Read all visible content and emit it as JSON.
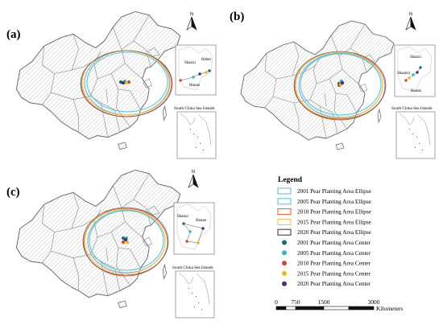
{
  "panels": [
    {
      "label": "(a)",
      "inset_places": [
        "Shanxi",
        "Hebei",
        "Henan"
      ],
      "inset_caption": "South China Sea Islands"
    },
    {
      "label": "(b)",
      "inset_places": [
        "Shanxi",
        "Shaanxi",
        "Henan"
      ],
      "inset_caption": "South China Sea Islands"
    },
    {
      "label": "(c)",
      "inset_places": [
        "Shanxi",
        "Henan"
      ],
      "inset_caption": "South China Sea Islands"
    }
  ],
  "north_label": "N",
  "legend": {
    "title": "Legend",
    "items": [
      {
        "label": "2001 Pear Planting Area Ellipse",
        "kind": "ellipse",
        "color": "#7fb3c2"
      },
      {
        "label": "2005 Pear Planting Area Ellipse",
        "kind": "ellipse",
        "color": "#5ec3d4"
      },
      {
        "label": "2010 Pear Planting Area Ellipse",
        "kind": "ellipse",
        "color": "#e06a3a"
      },
      {
        "label": "2015 Pear Planting Area Ellipse",
        "kind": "ellipse",
        "color": "#e8c060"
      },
      {
        "label": "2020 Pear Planting Area Ellipse",
        "kind": "ellipse",
        "color": "#404040"
      },
      {
        "label": "2001 Pear Planting Area Center",
        "kind": "center",
        "color": "#1f6b6b"
      },
      {
        "label": "2005 Pear Planting Area Center",
        "kind": "center",
        "color": "#3bb0c4"
      },
      {
        "label": "2010 Pear Planting Area Center",
        "kind": "center",
        "color": "#c8493a"
      },
      {
        "label": "2015 Pear Planting Area Center",
        "kind": "center",
        "color": "#e8b820"
      },
      {
        "label": "2020 Pear Planting Area Center",
        "kind": "center",
        "color": "#4a2a7a"
      }
    ]
  },
  "scale_bar": {
    "ticks": [
      "0",
      "750",
      "1500",
      "3000"
    ],
    "unit": "Kilometers"
  }
}
